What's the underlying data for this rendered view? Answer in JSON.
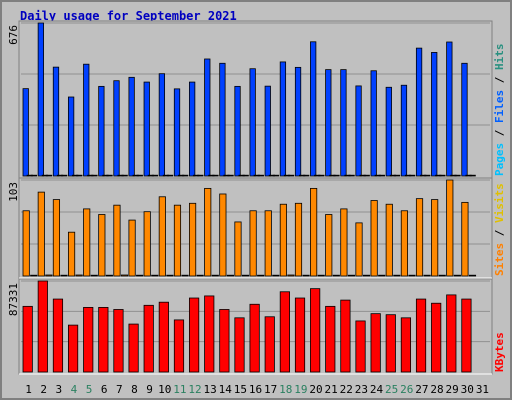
{
  "colors": {
    "background": "#c0c0c0",
    "plot_background": "#c0c0c0",
    "title": "#0000c0",
    "hits": "#0040ff",
    "pages": "#00c0ff",
    "files": "#0060ff",
    "visits": "#ff8800",
    "sites": "#ff8000",
    "kbytes": "#ff0000",
    "weekend_day": "#2a8060"
  },
  "chart_data": [
    {
      "type": "bar",
      "title": "Daily usage for September 2021",
      "categories": [
        "1",
        "2",
        "3",
        "4",
        "5",
        "6",
        "7",
        "8",
        "9",
        "10",
        "11",
        "12",
        "13",
        "14",
        "15",
        "16",
        "17",
        "18",
        "19",
        "20",
        "21",
        "22",
        "23",
        "24",
        "25",
        "26",
        "27",
        "28",
        "29",
        "30",
        "31"
      ],
      "weekend_days": [
        "4",
        "5",
        "11",
        "12",
        "18",
        "19",
        "25",
        "26"
      ],
      "ymax_label": "676",
      "ylim": [
        0,
        676
      ],
      "grid": true,
      "right_label": [
        "Pages",
        "/",
        "Files",
        "/",
        "Hits"
      ],
      "series": [
        {
          "name": "Hits",
          "values": [
            386,
            676,
            481,
            349,
            494,
            396,
            421,
            436,
            415,
            452,
            385,
            415,
            517,
            498,
            396,
            474,
            397,
            504,
            480,
            593,
            470,
            470,
            398,
            465,
            392,
            401,
            565,
            546,
            592,
            498,
            null
          ]
        },
        {
          "name": "Files",
          "values": [
            0,
            0,
            0,
            0,
            0,
            0,
            0,
            0,
            0,
            0,
            0,
            0,
            0,
            0,
            0,
            0,
            0,
            0,
            0,
            0,
            0,
            0,
            0,
            0,
            0,
            0,
            0,
            0,
            0,
            0,
            null
          ]
        },
        {
          "name": "Pages",
          "values": [
            0,
            0,
            0,
            0,
            0,
            0,
            0,
            0,
            0,
            0,
            0,
            0,
            0,
            0,
            0,
            0,
            0,
            0,
            0,
            0,
            0,
            0,
            0,
            0,
            0,
            0,
            0,
            0,
            0,
            0,
            null
          ]
        }
      ]
    },
    {
      "type": "bar",
      "categories": [
        "1",
        "2",
        "3",
        "4",
        "5",
        "6",
        "7",
        "8",
        "9",
        "10",
        "11",
        "12",
        "13",
        "14",
        "15",
        "16",
        "17",
        "18",
        "19",
        "20",
        "21",
        "22",
        "23",
        "24",
        "25",
        "26",
        "27",
        "28",
        "29",
        "30",
        "31"
      ],
      "ymax_label": "103",
      "ylim": [
        0,
        103
      ],
      "grid": true,
      "right_label": [
        "Sites",
        "/",
        "Visits"
      ],
      "series": [
        {
          "name": "Visits",
          "values": [
            70,
            90,
            82,
            47,
            72,
            66,
            76,
            60,
            69,
            85,
            76,
            78,
            94,
            88,
            58,
            70,
            70,
            77,
            78,
            94,
            66,
            72,
            57,
            81,
            77,
            70,
            83,
            82,
            103,
            79,
            null
          ]
        },
        {
          "name": "Sites",
          "values": [
            0,
            1,
            0,
            1,
            0,
            0,
            1,
            0,
            0,
            0,
            0,
            0,
            0,
            0,
            0,
            0,
            0,
            1,
            0,
            0,
            0,
            0,
            0,
            0,
            0,
            0,
            0,
            0,
            0,
            0,
            null
          ]
        }
      ]
    },
    {
      "type": "bar",
      "categories": [
        "1",
        "2",
        "3",
        "4",
        "5",
        "6",
        "7",
        "8",
        "9",
        "10",
        "11",
        "12",
        "13",
        "14",
        "15",
        "16",
        "17",
        "18",
        "19",
        "20",
        "21",
        "22",
        "23",
        "24",
        "25",
        "26",
        "27",
        "28",
        "29",
        "30",
        "31"
      ],
      "ymax_label": "87331",
      "ylim": [
        0,
        87331
      ],
      "grid": true,
      "right_label": [
        "KBytes"
      ],
      "series": [
        {
          "name": "KBytes",
          "values": [
            63000,
            87331,
            70000,
            45000,
            62000,
            62000,
            60000,
            46000,
            64000,
            67000,
            50000,
            71000,
            73000,
            60000,
            52000,
            65000,
            53000,
            77000,
            71000,
            80000,
            63000,
            69000,
            49000,
            56000,
            55000,
            52000,
            70000,
            66000,
            74000,
            70000,
            null
          ]
        }
      ]
    }
  ]
}
